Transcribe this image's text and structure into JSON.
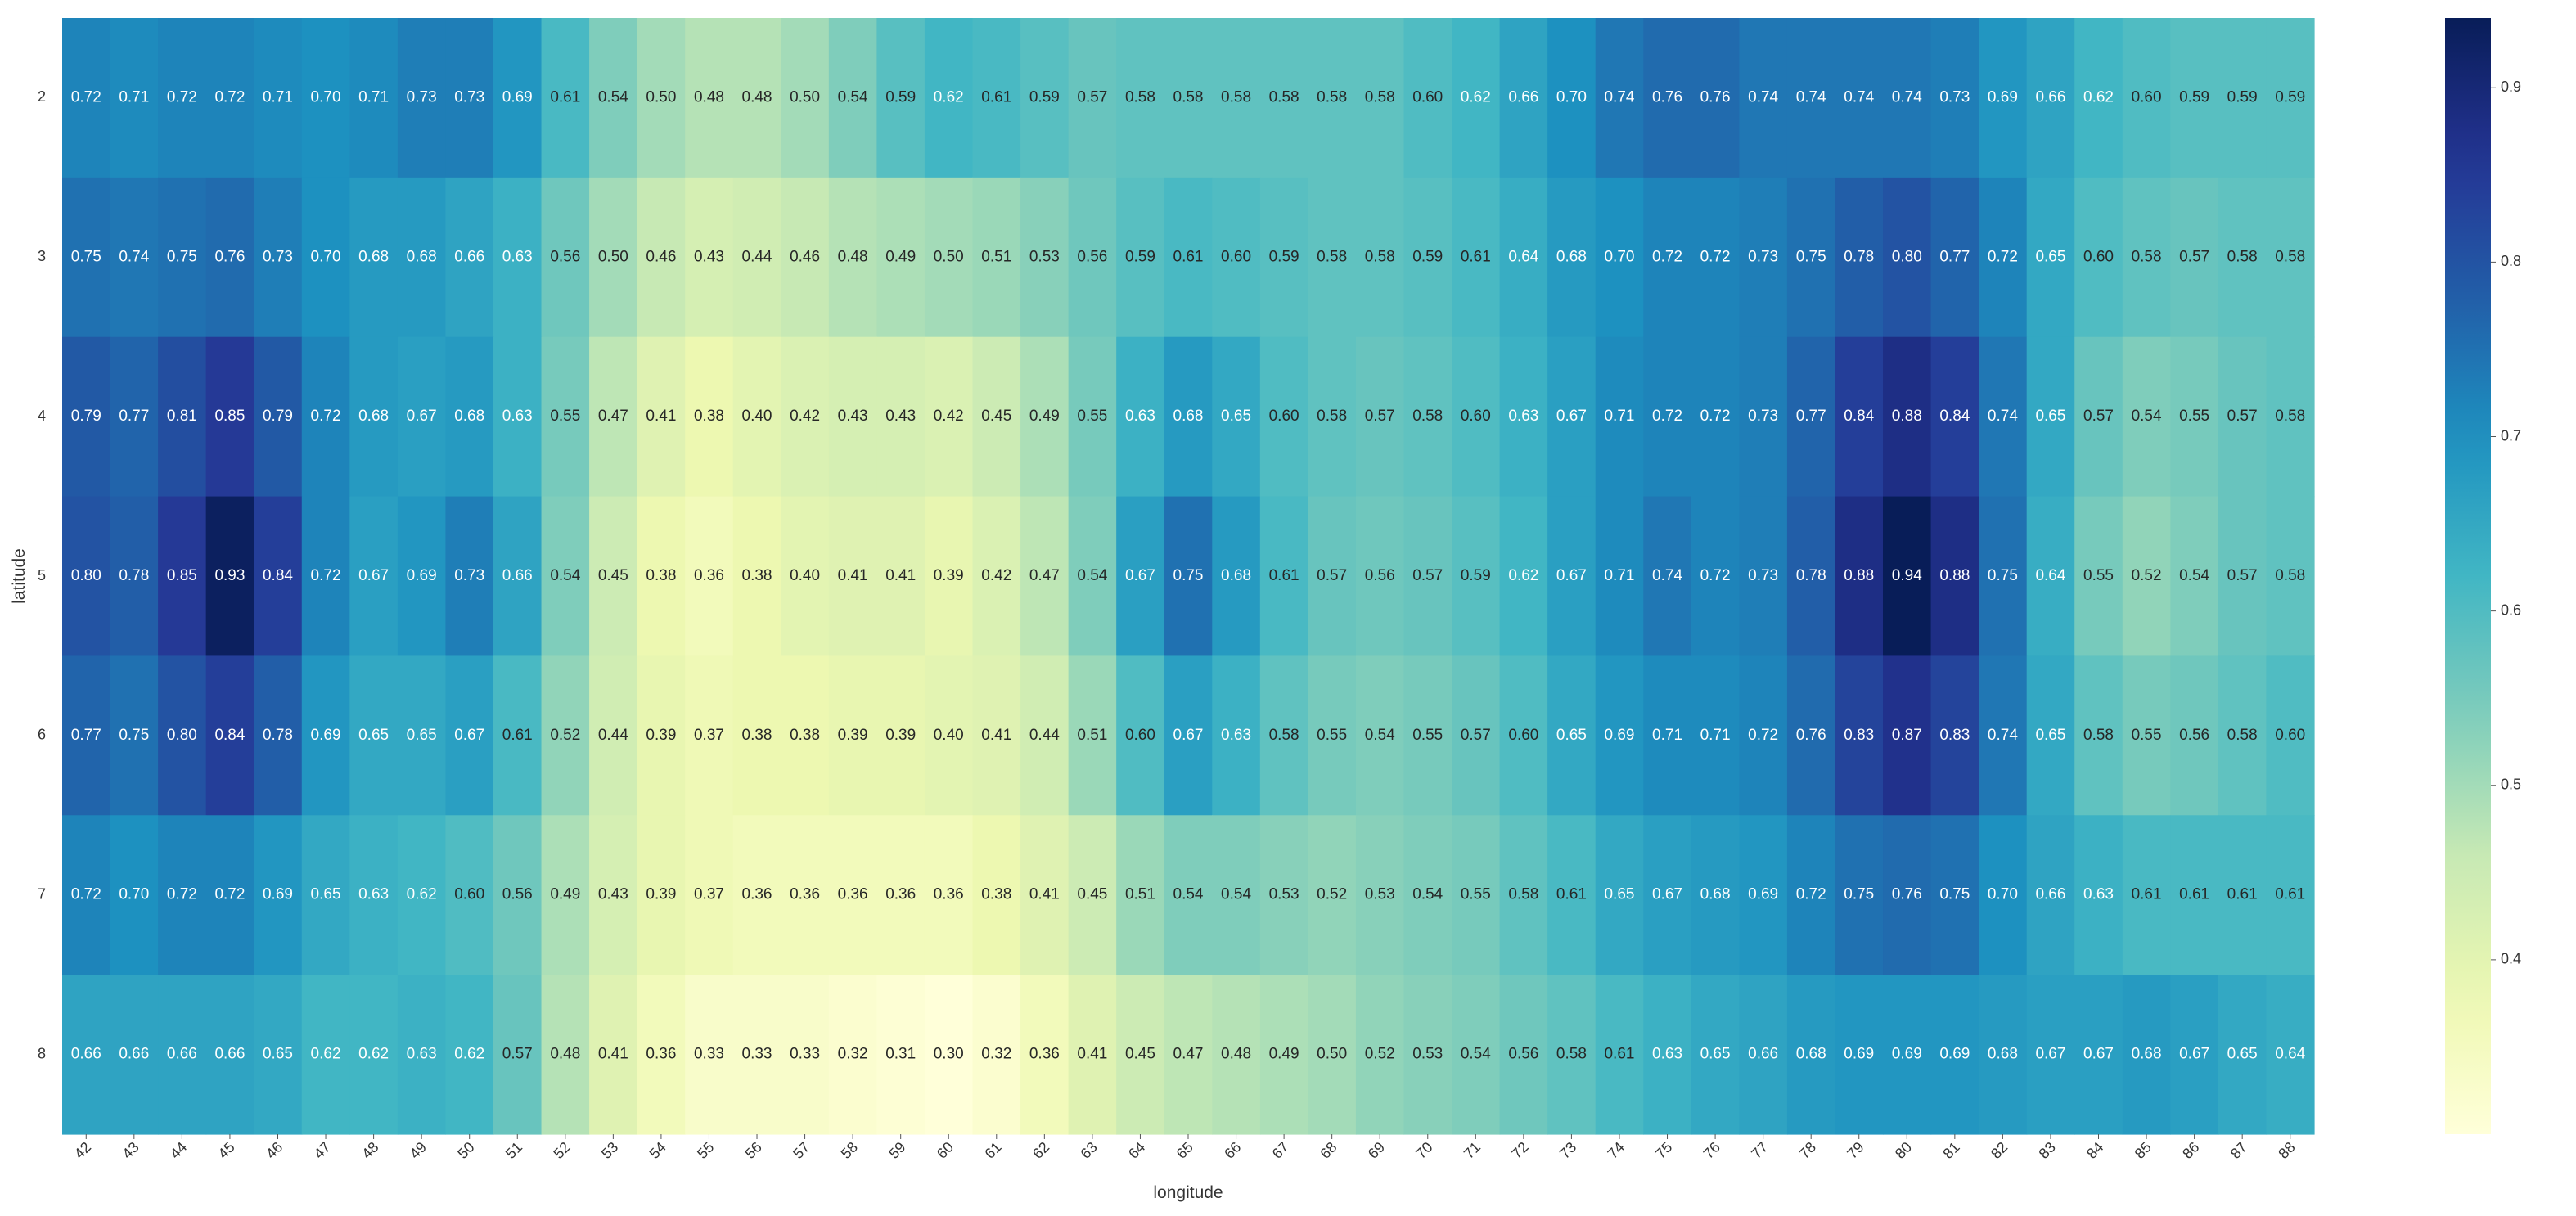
{
  "chart_data": {
    "type": "heatmap",
    "title": "",
    "xlabel": "longitude",
    "ylabel": "latitude",
    "x": [
      42,
      43,
      44,
      45,
      46,
      47,
      48,
      49,
      50,
      51,
      52,
      53,
      54,
      55,
      56,
      57,
      58,
      59,
      60,
      61,
      62,
      63,
      64,
      65,
      66,
      67,
      68,
      69,
      70,
      71,
      72,
      73,
      74,
      75,
      76,
      77,
      78,
      79,
      80,
      81,
      82,
      83,
      84,
      85,
      86,
      87,
      88
    ],
    "y": [
      2,
      3,
      4,
      5,
      6,
      7,
      8
    ],
    "values": [
      [
        0.72,
        0.71,
        0.72,
        0.72,
        0.71,
        0.7,
        0.71,
        0.73,
        0.73,
        0.69,
        0.61,
        0.54,
        0.5,
        0.48,
        0.48,
        0.5,
        0.54,
        0.59,
        0.62,
        0.61,
        0.59,
        0.57,
        0.58,
        0.58,
        0.58,
        0.58,
        0.58,
        0.58,
        0.6,
        0.62,
        0.66,
        0.7,
        0.74,
        0.76,
        0.76,
        0.74,
        0.74,
        0.74,
        0.74,
        0.73,
        0.69,
        0.66,
        0.62,
        0.6,
        0.59,
        0.59,
        0.59
      ],
      [
        0.75,
        0.74,
        0.75,
        0.76,
        0.73,
        0.7,
        0.68,
        0.68,
        0.66,
        0.63,
        0.56,
        0.5,
        0.46,
        0.43,
        0.44,
        0.46,
        0.48,
        0.49,
        0.5,
        0.51,
        0.53,
        0.56,
        0.59,
        0.61,
        0.6,
        0.59,
        0.58,
        0.58,
        0.59,
        0.61,
        0.64,
        0.68,
        0.7,
        0.72,
        0.72,
        0.73,
        0.75,
        0.78,
        0.8,
        0.77,
        0.72,
        0.65,
        0.6,
        0.58,
        0.57,
        0.58,
        0.58
      ],
      [
        0.79,
        0.77,
        0.81,
        0.85,
        0.79,
        0.72,
        0.68,
        0.67,
        0.68,
        0.63,
        0.55,
        0.47,
        0.41,
        0.38,
        0.4,
        0.42,
        0.43,
        0.43,
        0.42,
        0.45,
        0.49,
        0.55,
        0.63,
        0.68,
        0.65,
        0.6,
        0.58,
        0.57,
        0.58,
        0.6,
        0.63,
        0.67,
        0.71,
        0.72,
        0.72,
        0.73,
        0.77,
        0.84,
        0.88,
        0.84,
        0.74,
        0.65,
        0.57,
        0.54,
        0.55,
        0.57,
        0.58
      ],
      [
        0.8,
        0.78,
        0.85,
        0.93,
        0.84,
        0.72,
        0.67,
        0.69,
        0.73,
        0.66,
        0.54,
        0.45,
        0.38,
        0.36,
        0.38,
        0.4,
        0.41,
        0.41,
        0.39,
        0.42,
        0.47,
        0.54,
        0.67,
        0.75,
        0.68,
        0.61,
        0.57,
        0.56,
        0.57,
        0.59,
        0.62,
        0.67,
        0.71,
        0.74,
        0.72,
        0.73,
        0.78,
        0.88,
        0.94,
        0.88,
        0.75,
        0.64,
        0.55,
        0.52,
        0.54,
        0.57,
        0.58
      ],
      [
        0.77,
        0.75,
        0.8,
        0.84,
        0.78,
        0.69,
        0.65,
        0.65,
        0.67,
        0.61,
        0.52,
        0.44,
        0.39,
        0.37,
        0.38,
        0.38,
        0.39,
        0.39,
        0.4,
        0.41,
        0.44,
        0.51,
        0.6,
        0.67,
        0.63,
        0.58,
        0.55,
        0.54,
        0.55,
        0.57,
        0.6,
        0.65,
        0.69,
        0.71,
        0.71,
        0.72,
        0.76,
        0.83,
        0.87,
        0.83,
        0.74,
        0.65,
        0.58,
        0.55,
        0.56,
        0.58,
        0.6
      ],
      [
        0.72,
        0.7,
        0.72,
        0.72,
        0.69,
        0.65,
        0.63,
        0.62,
        0.6,
        0.56,
        0.49,
        0.43,
        0.39,
        0.37,
        0.36,
        0.36,
        0.36,
        0.36,
        0.36,
        0.38,
        0.41,
        0.45,
        0.51,
        0.54,
        0.54,
        0.53,
        0.52,
        0.53,
        0.54,
        0.55,
        0.58,
        0.61,
        0.65,
        0.67,
        0.68,
        0.69,
        0.72,
        0.75,
        0.76,
        0.75,
        0.7,
        0.66,
        0.63,
        0.61,
        0.61,
        0.61,
        0.61
      ],
      [
        0.66,
        0.66,
        0.66,
        0.66,
        0.65,
        0.62,
        0.62,
        0.63,
        0.62,
        0.57,
        0.48,
        0.41,
        0.36,
        0.33,
        0.33,
        0.33,
        0.32,
        0.31,
        0.3,
        0.32,
        0.36,
        0.41,
        0.45,
        0.47,
        0.48,
        0.49,
        0.5,
        0.52,
        0.53,
        0.54,
        0.56,
        0.58,
        0.61,
        0.63,
        0.65,
        0.66,
        0.68,
        0.69,
        0.69,
        0.69,
        0.68,
        0.67,
        0.67,
        0.68,
        0.67,
        0.65,
        0.64
      ]
    ],
    "colorbar": {
      "colormap": "YlGnBu",
      "range": [
        0.3,
        0.94
      ],
      "ticks": [
        0.4,
        0.5,
        0.6,
        0.7,
        0.8,
        0.9
      ],
      "tick_labels": [
        "0.4",
        "0.5",
        "0.6",
        "0.7",
        "0.8",
        "0.9"
      ]
    },
    "annotations": "cell values printed with 2 decimals",
    "grid": false
  }
}
